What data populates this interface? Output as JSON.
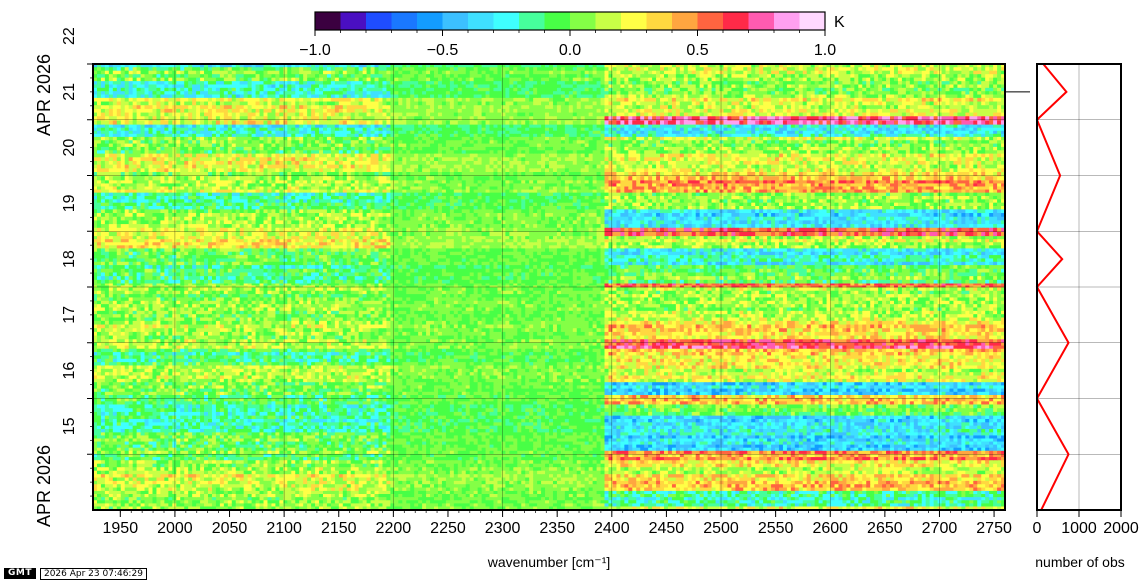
{
  "chart_data": [
    {
      "type": "heatmap",
      "title": "",
      "xlabel": "wavenumber [cm⁻¹]",
      "ylabel": "",
      "xlim": [
        1925,
        2760
      ],
      "ylim_days": [
        14.0,
        22.0
      ],
      "date_month_label": "APR 2026",
      "x_ticks": [
        "1950",
        "2000",
        "2050",
        "2100",
        "2150",
        "2200",
        "2250",
        "2300",
        "2350",
        "2400",
        "2450",
        "2500",
        "2550",
        "2600",
        "2650",
        "2700",
        "2750"
      ],
      "y_ticks": [
        "15",
        "16",
        "17",
        "18",
        "19",
        "20",
        "21",
        "22"
      ],
      "y_month_labels": [
        "APR 2026",
        "APR 2026"
      ],
      "colorbar": {
        "label": "K",
        "range": [
          -1.0,
          1.0
        ],
        "tick_labels": [
          "−1.0",
          "−0.5",
          "0.0",
          "0.5",
          "1.0"
        ],
        "colors": [
          "#3b0040",
          "#4a0fc2",
          "#1f4dff",
          "#1a78ff",
          "#139cff",
          "#3cc0ff",
          "#3fe0ff",
          "#3fffff",
          "#46ff9c",
          "#48ff46",
          "#84ff46",
          "#c8ff46",
          "#ffff46",
          "#ffd840",
          "#ffa640",
          "#ff6440",
          "#ff2a48",
          "#ff5bb0",
          "#ffa0f0",
          "#ffd8ff"
        ]
      },
      "bands": [
        {
          "t0": 13.94,
          "t1": 14.07,
          "a": 0.05,
          "b": 0.22
        },
        {
          "t0": 14.07,
          "t1": 14.35,
          "a": 0.05,
          "b": -0.18
        },
        {
          "t0": 14.35,
          "t1": 14.65,
          "a": 0.2,
          "b": 0.35
        },
        {
          "t0": 14.65,
          "t1": 14.9,
          "a": 0.1,
          "b": 0.2
        },
        {
          "t0": 14.9,
          "t1": 15.07,
          "a": 0.0,
          "b": 0.45
        },
        {
          "t0": 15.07,
          "t1": 15.4,
          "a": 0.0,
          "b": -0.35
        },
        {
          "t0": 15.4,
          "t1": 15.7,
          "a": -0.15,
          "b": -0.3
        },
        {
          "t0": 15.7,
          "t1": 15.9,
          "a": -0.2,
          "b": 0.05
        },
        {
          "t0": 15.9,
          "t1": 16.07,
          "a": -0.05,
          "b": 0.4
        },
        {
          "t0": 16.07,
          "t1": 16.3,
          "a": 0.0,
          "b": -0.35
        },
        {
          "t0": 16.3,
          "t1": 16.6,
          "a": 0.1,
          "b": 0.2
        },
        {
          "t0": 16.6,
          "t1": 16.9,
          "a": -0.1,
          "b": 0.3
        },
        {
          "t0": 16.9,
          "t1": 17.07,
          "a": 0.15,
          "b": 0.65
        },
        {
          "t0": 17.07,
          "t1": 17.4,
          "a": 0.1,
          "b": 0.3
        },
        {
          "t0": 17.4,
          "t1": 17.7,
          "a": 0.05,
          "b": 0.1
        },
        {
          "t0": 17.7,
          "t1": 18.0,
          "a": 0.05,
          "b": 0.1
        },
        {
          "t0": 18.0,
          "t1": 18.07,
          "a": 0.1,
          "b": 0.55
        },
        {
          "t0": 18.07,
          "t1": 18.4,
          "a": -0.1,
          "b": 0.0
        },
        {
          "t0": 18.4,
          "t1": 18.7,
          "a": 0.0,
          "b": -0.25
        },
        {
          "t0": 18.7,
          "t1": 18.92,
          "a": 0.25,
          "b": 0.15
        },
        {
          "t0": 18.92,
          "t1": 19.07,
          "a": 0.15,
          "b": 0.55
        },
        {
          "t0": 19.07,
          "t1": 19.4,
          "a": 0.05,
          "b": -0.3
        },
        {
          "t0": 19.4,
          "t1": 19.7,
          "a": -0.15,
          "b": 0.1
        },
        {
          "t0": 19.7,
          "t1": 19.92,
          "a": 0.15,
          "b": 0.45
        },
        {
          "t0": 19.92,
          "t1": 20.07,
          "a": 0.1,
          "b": 0.3
        },
        {
          "t0": 20.07,
          "t1": 20.4,
          "a": 0.2,
          "b": 0.2
        },
        {
          "t0": 20.4,
          "t1": 20.7,
          "a": 0.0,
          "b": 0.1
        },
        {
          "t0": 20.7,
          "t1": 20.92,
          "a": -0.25,
          "b": -0.25
        },
        {
          "t0": 20.92,
          "t1": 21.07,
          "a": 0.2,
          "b": 0.65
        },
        {
          "t0": 21.07,
          "t1": 21.4,
          "a": 0.2,
          "b": 0.2
        },
        {
          "t0": 21.4,
          "t1": 21.7,
          "a": -0.2,
          "b": 0.05
        },
        {
          "t0": 21.7,
          "t1": 21.95,
          "a": 0.0,
          "b": 0.15
        },
        {
          "t0": 21.95,
          "t1": 22.07,
          "a": -0.25,
          "b": 0.1
        }
      ]
    },
    {
      "type": "line",
      "xlabel": "number of obs",
      "xlim": [
        0,
        2000
      ],
      "x_ticks": [
        "0",
        "1000",
        "2000"
      ],
      "series": [
        {
          "color": "#ff0000",
          "x": [
            100,
            750,
            0,
            750,
            0,
            600,
            0,
            550,
            0,
            700,
            150
          ],
          "y": [
            14.0,
            15.0,
            16.0,
            17.0,
            18.0,
            18.5,
            19.0,
            20.0,
            21.0,
            21.5,
            22.1
          ]
        }
      ]
    }
  ],
  "footer": {
    "logo": "GMT",
    "timestamp": "2026 Apr 23 07:46:29"
  }
}
